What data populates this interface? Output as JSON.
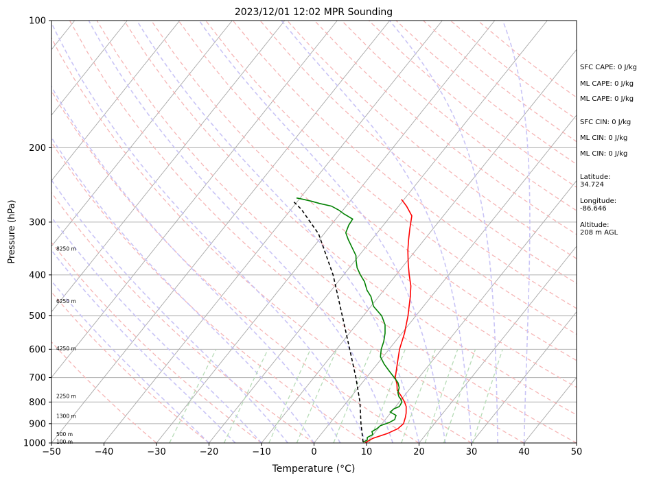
{
  "chart_data": {
    "type": "line",
    "title": "2023/12/01 12:02 MPR Sounding",
    "xlabel": "Temperature (°C)",
    "ylabel": "Pressure (hPa)",
    "xlim": [
      -50,
      50
    ],
    "ylim": [
      1000,
      100
    ],
    "yscale": "log",
    "grid": true,
    "x_ticks": [
      "−50",
      "−40",
      "−30",
      "−20",
      "−10",
      "0",
      "10",
      "20",
      "30",
      "40",
      "50"
    ],
    "y_ticks": [
      "100",
      "200",
      "300",
      "400",
      "500",
      "600",
      "700",
      "800",
      "900",
      "1000"
    ],
    "height_labels": [
      {
        "text": "100 m",
        "p": 995
      },
      {
        "text": "500 m",
        "p": 955
      },
      {
        "text": "1300 m",
        "p": 865
      },
      {
        "text": "2250 m",
        "p": 776
      },
      {
        "text": "4250 m",
        "p": 598
      },
      {
        "text": "6250 m",
        "p": 462
      },
      {
        "text": "8250 m",
        "p": 347
      }
    ],
    "series": [
      {
        "color": "#ff0000",
        "points": [
          [
            9.7,
            1000
          ],
          [
            10.5,
            975
          ],
          [
            12.5,
            950
          ],
          [
            13.8,
            925
          ],
          [
            14.1,
            900
          ],
          [
            13.5,
            870
          ],
          [
            13.0,
            850
          ],
          [
            12.0,
            820
          ],
          [
            11.0,
            800
          ],
          [
            9.5,
            775
          ],
          [
            7.8,
            750
          ],
          [
            6.8,
            725
          ],
          [
            5.5,
            700
          ],
          [
            3.8,
            650
          ],
          [
            2.0,
            600
          ],
          [
            0.5,
            550
          ],
          [
            -1.5,
            500
          ],
          [
            -4.0,
            450
          ],
          [
            -5.5,
            425
          ],
          [
            -7.5,
            400
          ],
          [
            -9.5,
            375
          ],
          [
            -11.5,
            350
          ],
          [
            -13.0,
            330
          ],
          [
            -14.5,
            310
          ],
          [
            -16.0,
            290
          ],
          [
            -18.5,
            275
          ],
          [
            -20.5,
            265
          ]
        ]
      },
      {
        "color": "#008000",
        "points": [
          [
            9.2,
            995
          ],
          [
            9.7,
            985
          ],
          [
            9.3,
            970
          ],
          [
            9.9,
            955
          ],
          [
            9.3,
            940
          ],
          [
            9.8,
            925
          ],
          [
            10.0,
            910
          ],
          [
            11.2,
            895
          ],
          [
            11.8,
            880
          ],
          [
            11.6,
            870
          ],
          [
            11.4,
            860
          ],
          [
            9.8,
            845
          ],
          [
            10.0,
            830
          ],
          [
            10.7,
            820
          ],
          [
            10.5,
            800
          ],
          [
            10.0,
            790
          ],
          [
            9.0,
            775
          ],
          [
            8.3,
            760
          ],
          [
            7.8,
            740
          ],
          [
            6.8,
            720
          ],
          [
            5.3,
            700
          ],
          [
            3.3,
            675
          ],
          [
            1.3,
            650
          ],
          [
            -0.5,
            625
          ],
          [
            -1.5,
            600
          ],
          [
            -2.2,
            575
          ],
          [
            -3.2,
            550
          ],
          [
            -4.5,
            525
          ],
          [
            -6.5,
            500
          ],
          [
            -9.5,
            475
          ],
          [
            -11.5,
            450
          ],
          [
            -13.2,
            435
          ],
          [
            -15.0,
            415
          ],
          [
            -16.8,
            400
          ],
          [
            -18.5,
            385
          ],
          [
            -19.8,
            370
          ],
          [
            -20.6,
            360
          ],
          [
            -22.5,
            345
          ],
          [
            -24.5,
            330
          ],
          [
            -26.0,
            318
          ],
          [
            -26.6,
            305
          ],
          [
            -26.8,
            295
          ],
          [
            -29.2,
            287
          ],
          [
            -30.8,
            281
          ],
          [
            -32.8,
            275
          ],
          [
            -35.5,
            271
          ],
          [
            -37.2,
            268
          ],
          [
            -39.2,
            265
          ],
          [
            -40.7,
            263
          ]
        ]
      },
      {
        "color": "#000000",
        "points": [
          [
            9.2,
            995
          ],
          [
            6.0,
            900
          ],
          [
            2.5,
            800
          ],
          [
            -2.0,
            700
          ],
          [
            -7.5,
            600
          ],
          [
            -14.0,
            500
          ],
          [
            -22.0,
            400
          ],
          [
            -31.0,
            320
          ],
          [
            -38.0,
            280
          ],
          [
            -41.0,
            267
          ]
        ]
      }
    ],
    "indices": {
      "sfc_cape": "SFC CAPE: 0 J/kg",
      "ml_cape_1": "ML CAPE: 0 J/kg",
      "ml_cape_2": "ML CAPE: 0 J/kg",
      "sfc_cin": "SFC CIN: 0 J/kg",
      "ml_cin_1": "ML CIN: 0 J/kg",
      "ml_cin_2": "ML CIN: 0 J/kg",
      "latitude_label": "Latitude:",
      "latitude_value": "34.724",
      "longitude_label": "Longitude:",
      "longitude_value": "-86.646",
      "altitude_label": "Altitude:",
      "altitude_value": "208 m AGL"
    }
  }
}
